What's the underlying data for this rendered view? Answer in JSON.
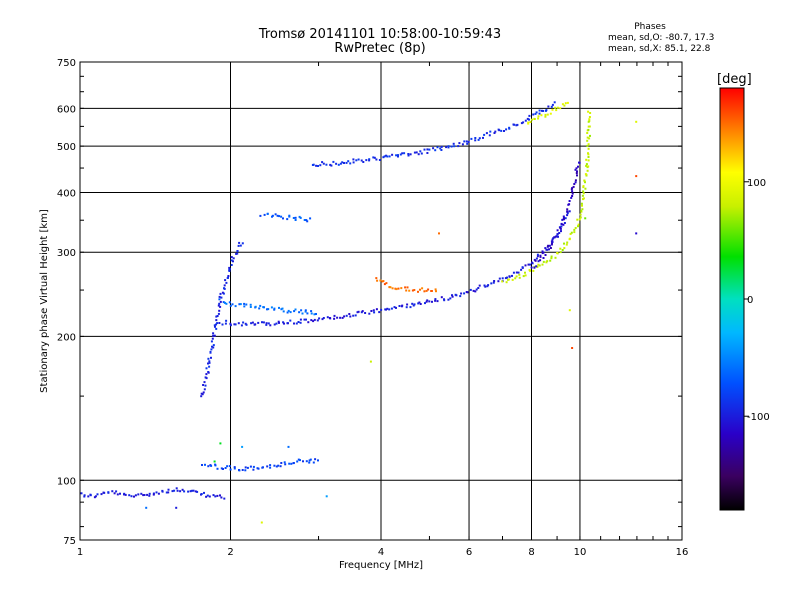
{
  "header": {
    "title_line1": "Tromsø 20141101 10:58:00-10:59:43",
    "title_line2": "RwPretec (8p)"
  },
  "phases": {
    "heading": "Phases",
    "o_line": "mean, sd,O: -80.7, 17.3",
    "x_line": "mean, sd,X: 85.1, 22.8"
  },
  "colorbar": {
    "unit_label": "[deg]",
    "tick_labels": [
      "100",
      "0",
      "-100"
    ],
    "tick_values": [
      100,
      0,
      -100
    ],
    "range": [
      -180,
      180
    ]
  },
  "chart_data": {
    "type": "scatter",
    "xlabel": "Frequency [MHz]",
    "ylabel": "Stationary phase Virtual Height [km]",
    "xscale": "log",
    "yscale": "log",
    "xlim": [
      1,
      16
    ],
    "ylim": [
      75,
      750
    ],
    "x_ticks": [
      1,
      2,
      4,
      6,
      8,
      10,
      16
    ],
    "x_tick_labels": [
      "1",
      "2",
      "4",
      "6",
      "8",
      "10",
      "16"
    ],
    "y_ticks": [
      75,
      100,
      200,
      300,
      400,
      500,
      600,
      750
    ],
    "y_tick_labels": [
      "75",
      "100",
      "200",
      "300",
      "400",
      "500",
      "600",
      "750"
    ],
    "grid": true,
    "color_by": "phase [deg]",
    "traces": [
      {
        "x": [
          1.0,
          1.05,
          1.15,
          1.25,
          1.35,
          1.45,
          1.55,
          1.65,
          1.75,
          1.85,
          1.95
        ],
        "y": [
          94,
          93,
          95,
          93,
          94,
          95,
          96,
          95,
          94,
          93,
          92
        ],
        "phase": -100
      },
      {
        "x": [
          1.75,
          1.9,
          2.1,
          2.3,
          2.5,
          2.7,
          2.9,
          3.0
        ],
        "y": [
          108,
          107,
          106,
          107,
          108,
          110,
          110,
          111
        ],
        "phase": -80
      },
      {
        "x": [
          1.75,
          1.8,
          1.85,
          1.9,
          1.95,
          2.0,
          2.05,
          2.1
        ],
        "y": [
          150,
          175,
          205,
          240,
          260,
          290,
          300,
          320
        ],
        "phase": -95
      },
      {
        "x": [
          1.9,
          2.0,
          2.2,
          2.5,
          2.8,
          3.1,
          3.5,
          4.0,
          4.5,
          5.0,
          5.5,
          6.0,
          6.5,
          7.0,
          7.5,
          8.0,
          8.5,
          9.0,
          9.5
        ],
        "y": [
          215,
          214,
          213,
          214,
          216,
          219,
          223,
          228,
          233,
          238,
          243,
          250,
          257,
          265,
          275,
          288,
          305,
          330,
          370
        ],
        "phase": -100
      },
      {
        "x": [
          1.9,
          2.0,
          2.2,
          2.5,
          2.8,
          3.0
        ],
        "y": [
          240,
          235,
          232,
          228,
          226,
          225
        ],
        "phase": -60
      },
      {
        "x": [
          2.3,
          2.5,
          2.7,
          2.9
        ],
        "y": [
          360,
          358,
          355,
          352
        ],
        "phase": -70
      },
      {
        "x": [
          3.9,
          4.1,
          4.3,
          4.5,
          4.7,
          4.9,
          5.2
        ],
        "y": [
          265,
          258,
          254,
          252,
          251,
          251,
          252
        ],
        "phase": 150
      },
      {
        "x": [
          2.9,
          3.2,
          3.6,
          4.0,
          4.5,
          5.0,
          5.5,
          6.0,
          6.5,
          7.0,
          7.5,
          8.0,
          8.5,
          9.0
        ],
        "y": [
          460,
          462,
          468,
          475,
          483,
          492,
          503,
          515,
          530,
          545,
          560,
          580,
          600,
          620
        ],
        "phase": -90
      },
      {
        "x": [
          7.8,
          8.2,
          8.6,
          9.0,
          9.5
        ],
        "y": [
          560,
          575,
          590,
          605,
          625
        ],
        "phase": 90
      },
      {
        "x": [
          7.0,
          7.5,
          8.0,
          8.5,
          9.0,
          9.5,
          9.9,
          10.1,
          10.3,
          10.4
        ],
        "y": [
          260,
          268,
          277,
          287,
          300,
          320,
          350,
          390,
          460,
          600
        ],
        "phase": 80
      },
      {
        "x": [
          8.0,
          8.5,
          9.0,
          9.4,
          9.7,
          9.9
        ],
        "y": [
          280,
          300,
          330,
          370,
          420,
          470
        ],
        "phase": -115
      }
    ],
    "outliers": [
      {
        "x": 5.2,
        "y": 330,
        "phase": 150
      },
      {
        "x": 3.8,
        "y": 178,
        "phase": 80
      },
      {
        "x": 9.6,
        "y": 190,
        "phase": 160
      },
      {
        "x": 9.5,
        "y": 228,
        "phase": 90
      },
      {
        "x": 12.9,
        "y": 565,
        "phase": 90
      },
      {
        "x": 12.9,
        "y": 435,
        "phase": 160
      },
      {
        "x": 12.9,
        "y": 330,
        "phase": -110
      },
      {
        "x": 10.2,
        "y": 355,
        "phase": 60
      },
      {
        "x": 1.9,
        "y": 120,
        "phase": 30
      },
      {
        "x": 1.85,
        "y": 110,
        "phase": 30
      },
      {
        "x": 2.1,
        "y": 118,
        "phase": -40
      },
      {
        "x": 2.6,
        "y": 118,
        "phase": -60
      },
      {
        "x": 2.3,
        "y": 82,
        "phase": 90
      },
      {
        "x": 3.1,
        "y": 93,
        "phase": -40
      },
      {
        "x": 1.55,
        "y": 88,
        "phase": -100
      },
      {
        "x": 1.35,
        "y": 88,
        "phase": -60
      }
    ]
  }
}
